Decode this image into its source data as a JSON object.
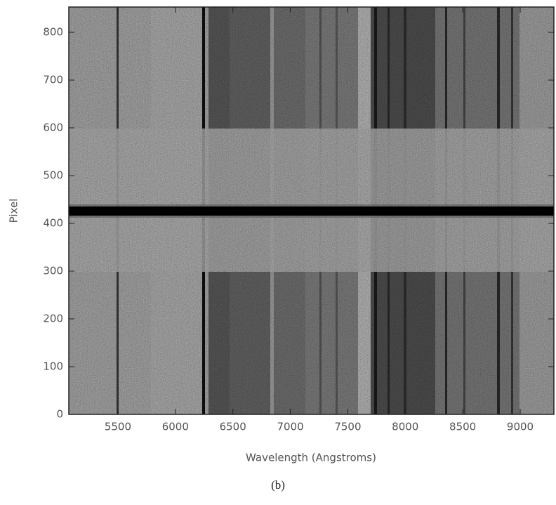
{
  "chart_data": {
    "type": "image",
    "xlabel": "Wavelength (Angstroms)",
    "ylabel": "Pixel",
    "caption": "(b)",
    "xlim": [
      5073,
      9293
    ],
    "xticks": [
      5500,
      6000,
      6500,
      7000,
      7500,
      8000,
      8500,
      9000
    ],
    "ylim": [
      0,
      853
    ],
    "yticks": [
      0,
      100,
      200,
      300,
      400,
      500,
      600,
      700,
      800
    ],
    "colormap": "gray"
  }
}
